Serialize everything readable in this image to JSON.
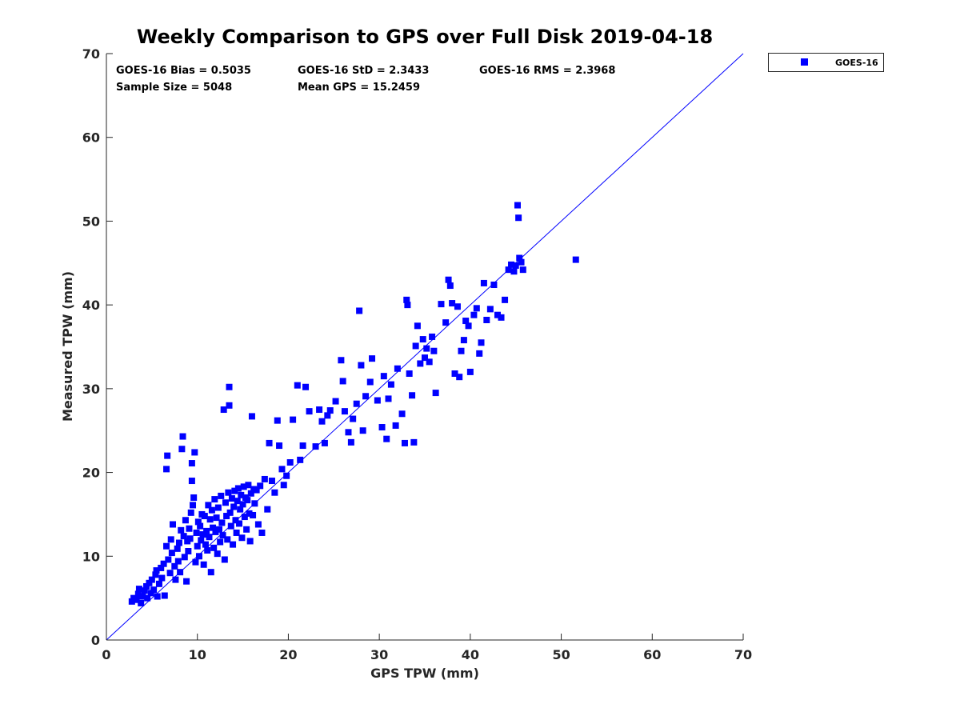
{
  "chart_data": {
    "type": "scatter",
    "title": "Weekly Comparison to GPS over Full Disk 2019-04-18",
    "xlabel": "GPS TPW (mm)",
    "ylabel": "Measured TPW (mm)",
    "xlim": [
      0,
      70
    ],
    "ylim": [
      0,
      70
    ],
    "xticks": [
      "0",
      "10",
      "20",
      "30",
      "40",
      "50",
      "60",
      "70"
    ],
    "yticks": [
      "0",
      "10",
      "20",
      "30",
      "40",
      "50",
      "60",
      "70"
    ],
    "grid": false,
    "legend_position": "top-right outside",
    "reference_line": {
      "label": "1:1 line",
      "from": [
        0,
        0
      ],
      "to": [
        70,
        70
      ],
      "color": "#0000ff"
    },
    "stats": [
      [
        "GOES-16 Bias = 0.5035",
        "GOES-16 StD = 2.3433",
        "GOES-16 RMS = 2.3968"
      ],
      [
        "Sample Size = 5048",
        "Mean GPS = 15.2459"
      ]
    ],
    "series": [
      {
        "name": "GOES-16",
        "color": "#0000ff",
        "marker": "square",
        "points": [
          [
            2.8,
            4.6
          ],
          [
            3.0,
            5.0
          ],
          [
            3.3,
            4.8
          ],
          [
            3.5,
            5.5
          ],
          [
            3.6,
            6.1
          ],
          [
            3.8,
            4.4
          ],
          [
            4.0,
            5.2
          ],
          [
            4.2,
            5.9
          ],
          [
            4.4,
            6.4
          ],
          [
            4.5,
            5.0
          ],
          [
            4.7,
            6.8
          ],
          [
            4.9,
            5.6
          ],
          [
            5.0,
            7.2
          ],
          [
            5.2,
            6.0
          ],
          [
            5.4,
            7.8
          ],
          [
            5.5,
            8.3
          ],
          [
            5.6,
            5.2
          ],
          [
            5.8,
            6.7
          ],
          [
            6.0,
            8.6
          ],
          [
            6.1,
            7.4
          ],
          [
            6.3,
            9.1
          ],
          [
            6.4,
            5.3
          ],
          [
            6.6,
            11.2
          ],
          [
            6.6,
            20.4
          ],
          [
            6.7,
            22.0
          ],
          [
            6.8,
            9.6
          ],
          [
            7.0,
            8.0
          ],
          [
            7.1,
            12.0
          ],
          [
            7.2,
            10.4
          ],
          [
            7.3,
            13.8
          ],
          [
            7.5,
            8.8
          ],
          [
            7.6,
            7.2
          ],
          [
            7.8,
            10.9
          ],
          [
            7.9,
            9.4
          ],
          [
            8.0,
            11.6
          ],
          [
            8.1,
            8.1
          ],
          [
            8.2,
            13.1
          ],
          [
            8.3,
            22.8
          ],
          [
            8.4,
            24.3
          ],
          [
            8.5,
            12.4
          ],
          [
            8.6,
            9.9
          ],
          [
            8.7,
            14.3
          ],
          [
            8.8,
            7.0
          ],
          [
            8.9,
            11.8
          ],
          [
            9.0,
            10.6
          ],
          [
            9.1,
            13.3
          ],
          [
            9.2,
            12.1
          ],
          [
            9.3,
            15.2
          ],
          [
            9.4,
            21.1
          ],
          [
            9.4,
            19.0
          ],
          [
            9.5,
            16.1
          ],
          [
            9.6,
            17.0
          ],
          [
            9.7,
            22.4
          ],
          [
            9.8,
            9.3
          ],
          [
            9.9,
            12.8
          ],
          [
            10.0,
            11.2
          ],
          [
            10.1,
            14.1
          ],
          [
            10.2,
            10.0
          ],
          [
            10.3,
            13.6
          ],
          [
            10.4,
            11.9
          ],
          [
            10.5,
            15.0
          ],
          [
            10.6,
            12.6
          ],
          [
            10.7,
            9.0
          ],
          [
            10.8,
            14.8
          ],
          [
            10.9,
            11.4
          ],
          [
            11.0,
            13.0
          ],
          [
            11.1,
            10.7
          ],
          [
            11.2,
            16.1
          ],
          [
            11.3,
            12.3
          ],
          [
            11.4,
            14.4
          ],
          [
            11.5,
            8.1
          ],
          [
            11.6,
            15.5
          ],
          [
            11.7,
            13.4
          ],
          [
            11.8,
            11.0
          ],
          [
            11.9,
            16.8
          ],
          [
            12.0,
            12.9
          ],
          [
            12.1,
            14.6
          ],
          [
            12.2,
            10.3
          ],
          [
            12.3,
            15.8
          ],
          [
            12.4,
            13.2
          ],
          [
            12.5,
            11.7
          ],
          [
            12.6,
            17.2
          ],
          [
            12.7,
            14.0
          ],
          [
            12.8,
            12.5
          ],
          [
            12.9,
            27.5
          ],
          [
            13.0,
            9.6
          ],
          [
            13.1,
            16.4
          ],
          [
            13.2,
            14.8
          ],
          [
            13.3,
            12.0
          ],
          [
            13.4,
            17.6
          ],
          [
            13.5,
            28.0
          ],
          [
            13.5,
            30.2
          ],
          [
            13.6,
            15.2
          ],
          [
            13.7,
            13.6
          ],
          [
            13.8,
            16.9
          ],
          [
            13.9,
            11.4
          ],
          [
            14.0,
            15.9
          ],
          [
            14.1,
            17.8
          ],
          [
            14.2,
            14.3
          ],
          [
            14.3,
            12.8
          ],
          [
            14.4,
            16.6
          ],
          [
            14.5,
            18.1
          ],
          [
            14.6,
            13.9
          ],
          [
            14.7,
            15.6
          ],
          [
            14.8,
            17.3
          ],
          [
            14.9,
            12.2
          ],
          [
            15.0,
            16.2
          ],
          [
            15.1,
            18.3
          ],
          [
            15.2,
            14.7
          ],
          [
            15.3,
            17.0
          ],
          [
            15.4,
            13.2
          ],
          [
            15.5,
            16.7
          ],
          [
            15.6,
            18.5
          ],
          [
            15.7,
            15.1
          ],
          [
            15.8,
            11.8
          ],
          [
            15.9,
            17.5
          ],
          [
            16.0,
            26.7
          ],
          [
            16.1,
            14.9
          ],
          [
            16.2,
            18.0
          ],
          [
            16.3,
            16.3
          ],
          [
            16.5,
            17.9
          ],
          [
            16.7,
            13.8
          ],
          [
            16.9,
            18.4
          ],
          [
            17.1,
            12.8
          ],
          [
            17.4,
            19.2
          ],
          [
            17.7,
            15.6
          ],
          [
            17.9,
            23.5
          ],
          [
            18.2,
            19.0
          ],
          [
            18.5,
            17.6
          ],
          [
            18.8,
            26.2
          ],
          [
            19.0,
            23.2
          ],
          [
            19.3,
            20.4
          ],
          [
            19.5,
            18.5
          ],
          [
            19.8,
            19.6
          ],
          [
            20.2,
            21.2
          ],
          [
            20.5,
            26.3
          ],
          [
            21.0,
            30.4
          ],
          [
            21.3,
            21.5
          ],
          [
            21.6,
            23.2
          ],
          [
            21.9,
            30.2
          ],
          [
            22.3,
            27.3
          ],
          [
            23.0,
            23.1
          ],
          [
            23.4,
            27.5
          ],
          [
            23.7,
            26.1
          ],
          [
            24.0,
            23.5
          ],
          [
            24.3,
            26.8
          ],
          [
            24.6,
            27.4
          ],
          [
            25.2,
            28.5
          ],
          [
            25.8,
            33.4
          ],
          [
            26.0,
            30.9
          ],
          [
            26.2,
            27.3
          ],
          [
            26.6,
            24.8
          ],
          [
            26.9,
            23.6
          ],
          [
            27.1,
            26.4
          ],
          [
            27.5,
            28.2
          ],
          [
            27.8,
            39.3
          ],
          [
            28.0,
            32.8
          ],
          [
            28.2,
            25.0
          ],
          [
            28.5,
            29.1
          ],
          [
            29.0,
            30.8
          ],
          [
            29.2,
            33.6
          ],
          [
            29.8,
            28.6
          ],
          [
            30.3,
            25.4
          ],
          [
            30.5,
            31.5
          ],
          [
            30.8,
            24.0
          ],
          [
            31.0,
            28.8
          ],
          [
            31.3,
            30.5
          ],
          [
            31.8,
            25.6
          ],
          [
            32.0,
            32.4
          ],
          [
            32.5,
            27.0
          ],
          [
            32.8,
            23.5
          ],
          [
            33.0,
            40.6
          ],
          [
            33.1,
            40.0
          ],
          [
            33.3,
            31.8
          ],
          [
            33.6,
            29.2
          ],
          [
            33.8,
            23.6
          ],
          [
            34.0,
            35.1
          ],
          [
            34.2,
            37.5
          ],
          [
            34.5,
            33.0
          ],
          [
            34.8,
            35.9
          ],
          [
            35.0,
            33.7
          ],
          [
            35.2,
            34.8
          ],
          [
            35.5,
            33.2
          ],
          [
            35.8,
            36.2
          ],
          [
            36.0,
            34.5
          ],
          [
            36.2,
            29.5
          ],
          [
            36.8,
            40.1
          ],
          [
            37.3,
            37.9
          ],
          [
            37.6,
            43.0
          ],
          [
            37.8,
            42.3
          ],
          [
            38.0,
            40.2
          ],
          [
            38.3,
            31.8
          ],
          [
            38.6,
            39.8
          ],
          [
            38.8,
            31.4
          ],
          [
            39.0,
            34.5
          ],
          [
            39.3,
            35.8
          ],
          [
            39.5,
            38.1
          ],
          [
            39.8,
            37.5
          ],
          [
            40.0,
            32.0
          ],
          [
            40.4,
            38.8
          ],
          [
            40.7,
            39.6
          ],
          [
            41.0,
            34.2
          ],
          [
            41.2,
            35.5
          ],
          [
            41.5,
            42.6
          ],
          [
            41.8,
            38.2
          ],
          [
            42.2,
            39.5
          ],
          [
            42.6,
            42.4
          ],
          [
            43.0,
            38.8
          ],
          [
            43.4,
            38.5
          ],
          [
            43.8,
            40.6
          ],
          [
            44.2,
            44.2
          ],
          [
            44.5,
            44.8
          ],
          [
            44.8,
            44.0
          ],
          [
            45.0,
            44.7
          ],
          [
            45.2,
            51.9
          ],
          [
            45.3,
            50.4
          ],
          [
            45.4,
            45.6
          ],
          [
            45.6,
            45.1
          ],
          [
            45.8,
            44.2
          ],
          [
            51.6,
            45.4
          ]
        ]
      }
    ]
  }
}
